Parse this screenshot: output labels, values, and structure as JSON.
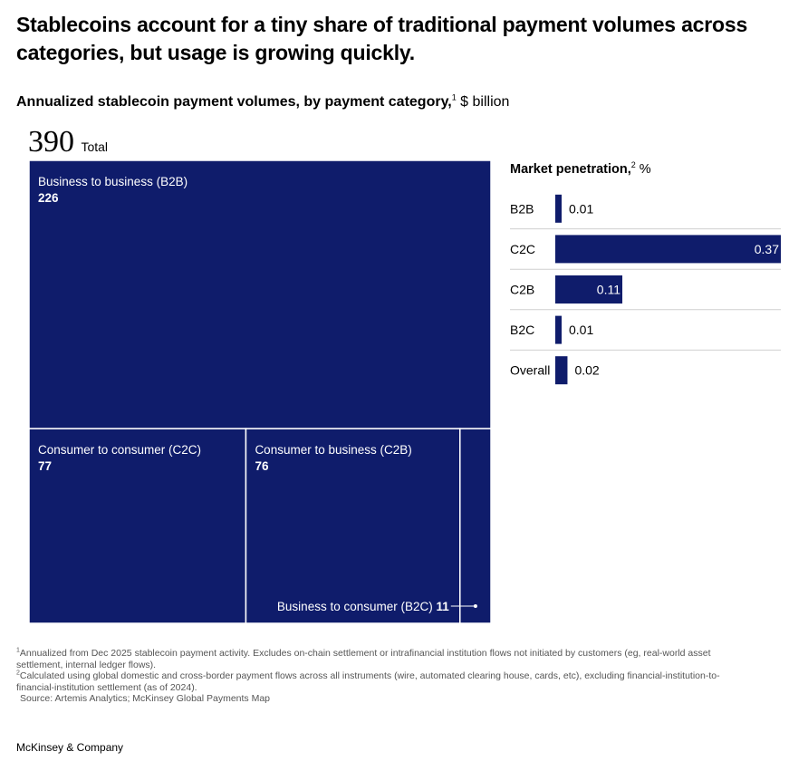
{
  "title": "Stablecoins account for a tiny share of traditional payment volumes across categories, but usage is growing quickly.",
  "subtitle": {
    "bold": "Annualized stablecoin payment volumes, by payment category,",
    "sup": "1",
    "unit": " $ billion"
  },
  "total": {
    "value": "390",
    "label": "Total"
  },
  "colors": {
    "bar": "#0f1c6b",
    "divider": "#ffffff",
    "rule": "#cfcfcf",
    "text": "#000000"
  },
  "chart_data": [
    {
      "type": "treemap",
      "title": "Annualized stablecoin payment volumes, by payment category, $ billion",
      "total": 390,
      "items": [
        {
          "name": "Business to business (B2B)",
          "value": 226
        },
        {
          "name": "Consumer to consumer (C2C)",
          "value": 77
        },
        {
          "name": "Consumer to business (C2B)",
          "value": 76
        },
        {
          "name": "Business to consumer (B2C)",
          "value": 11
        }
      ]
    },
    {
      "type": "bar",
      "orientation": "horizontal",
      "title_bold": "Market penetration,",
      "title_sup": "2",
      "unit": " %",
      "categories": [
        "B2B",
        "C2C",
        "C2B",
        "B2C",
        "Overall"
      ],
      "values": [
        0.01,
        0.37,
        0.11,
        0.01,
        0.02
      ],
      "labels": [
        "0.01",
        "0.37",
        "0.11",
        "0.01",
        "0.02"
      ],
      "xlim": [
        0,
        0.37
      ]
    }
  ],
  "footnotes": [
    {
      "sup": "1",
      "text": "Annualized from Dec 2025 stablecoin payment activity. Excludes on-chain settlement or intrafinancial institution flows not initiated by customers (eg, real-world asset settlement, internal ledger flows)."
    },
    {
      "sup": "2",
      "text": "Calculated using global domestic and cross-border payment flows across all instruments (wire, automated clearing house, cards, etc), excluding financial-institution-to-financial-institution settlement (as of 2024)."
    }
  ],
  "source": "Source: Artemis Analytics; McKinsey Global Payments Map",
  "brand": "McKinsey & Company"
}
